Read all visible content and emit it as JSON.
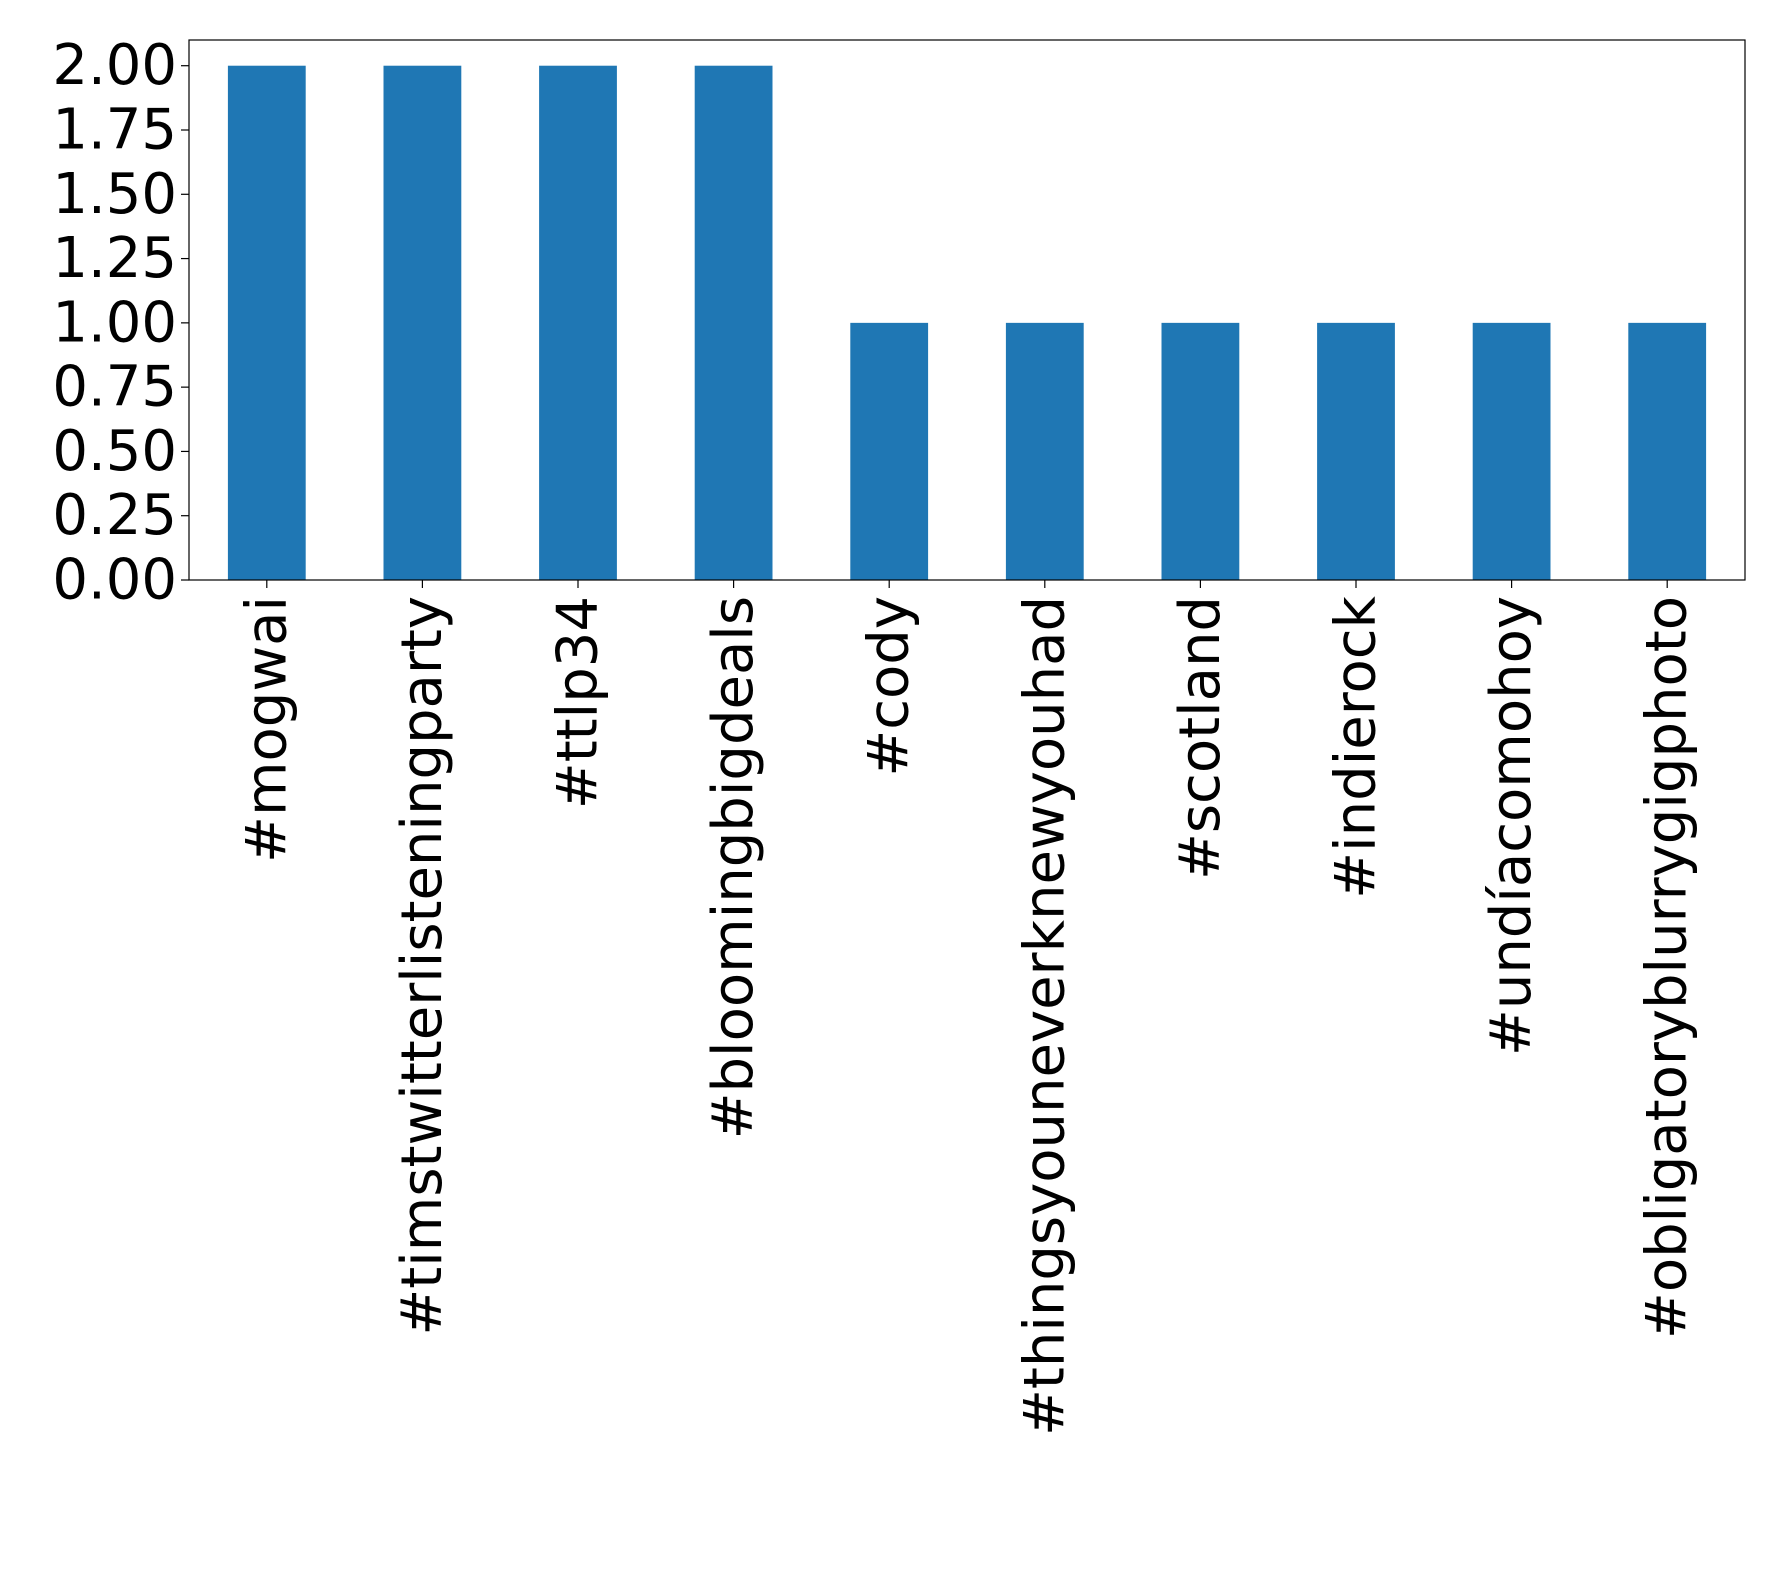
{
  "chart_data": {
    "type": "bar",
    "title": "",
    "xlabel": "",
    "ylabel": "",
    "categories": [
      "#mogwai",
      "#timstwitterlisteningparty",
      "#ttlp34",
      "#bloomingbigdeals",
      "#cody",
      "#thingsyouneverknewyouhad",
      "#scotland",
      "#indierock",
      "#undíacomohoy",
      "#obligatoryblurrygigphoto"
    ],
    "values": [
      2,
      2,
      2,
      2,
      1,
      1,
      1,
      1,
      1,
      1
    ],
    "ylim": [
      0,
      2.1
    ],
    "yticks": [
      "0.00",
      "0.25",
      "0.50",
      "0.75",
      "1.00",
      "1.25",
      "1.50",
      "1.75",
      "2.00"
    ],
    "bar_color": "#1f77b4",
    "grid": false,
    "legend": "none"
  }
}
